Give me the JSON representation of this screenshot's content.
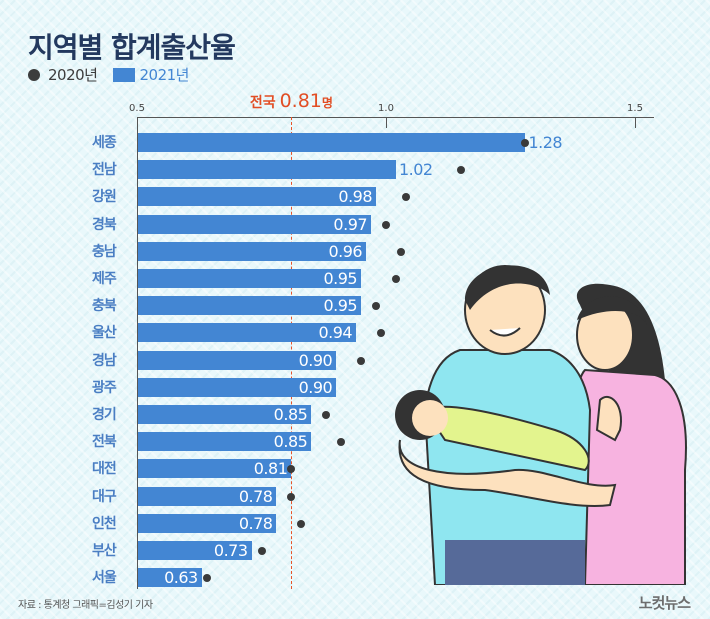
{
  "title": "지역별 합계출산율",
  "legend": {
    "y2020": "2020년",
    "y2021": "2021년"
  },
  "colors": {
    "bar": "#4386d3",
    "dot": "#3a3a3a",
    "average": "#e24e25",
    "title": "#23395f",
    "label": "#4a7ec3"
  },
  "average": {
    "label": "전국",
    "value": "0.81",
    "unit": "명",
    "numeric": 0.81
  },
  "axis": {
    "ticks": [
      "0.5",
      "1.0",
      "1.5"
    ]
  },
  "source": "자료 : 통계청   그래픽=김성기 기자",
  "logo": "노컷뉴스",
  "chart_data": {
    "type": "bar",
    "orientation": "horizontal",
    "title": "지역별 합계출산율",
    "xlabel": "",
    "ylabel": "",
    "xlim": [
      0.5,
      1.55
    ],
    "xticks": [
      0.5,
      1.0,
      1.5
    ],
    "grid": false,
    "legend_position": "top-left",
    "categories": [
      "세종",
      "전남",
      "강원",
      "경북",
      "충남",
      "제주",
      "충북",
      "울산",
      "경남",
      "광주",
      "경기",
      "전북",
      "대전",
      "대구",
      "인천",
      "부산",
      "서울"
    ],
    "series": [
      {
        "name": "2021년",
        "kind": "bar",
        "values": [
          1.28,
          1.02,
          0.98,
          0.97,
          0.96,
          0.95,
          0.95,
          0.94,
          0.9,
          0.9,
          0.85,
          0.85,
          0.81,
          0.78,
          0.78,
          0.73,
          0.63
        ]
      },
      {
        "name": "2020년",
        "kind": "dot",
        "values": [
          1.28,
          1.15,
          1.04,
          1.0,
          1.03,
          1.02,
          0.98,
          0.99,
          0.95,
          null,
          0.88,
          0.91,
          0.81,
          0.81,
          0.83,
          0.75,
          0.64
        ]
      }
    ],
    "annotations": [
      {
        "type": "vline",
        "x": 0.81,
        "label": "전국 0.81명",
        "style": "dashed",
        "color": "#e24e25"
      }
    ]
  }
}
